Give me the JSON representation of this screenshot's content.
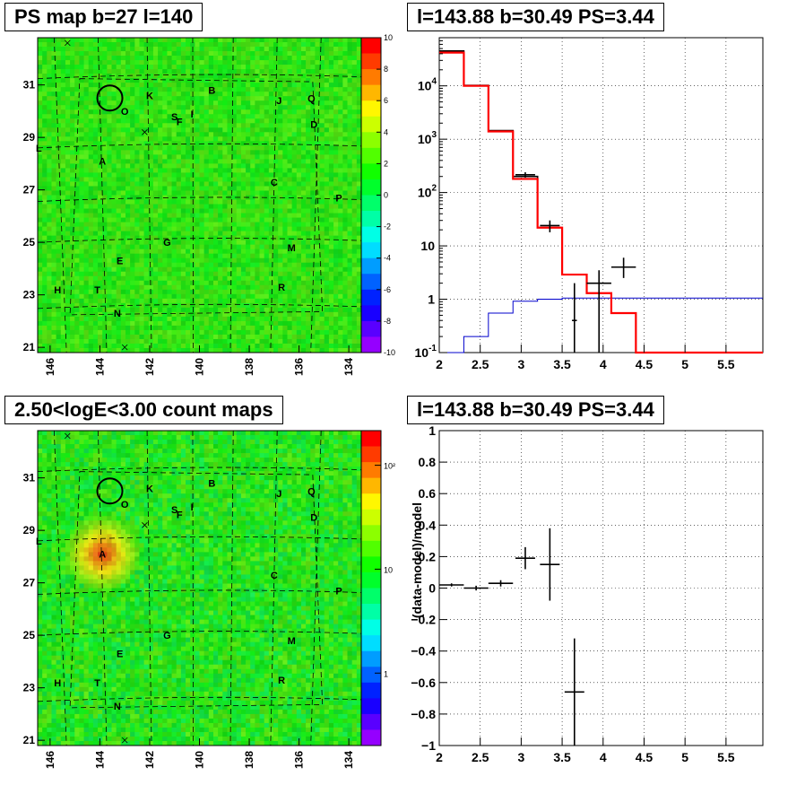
{
  "panels": {
    "ps_map": {
      "title": "PS map b=27 l=140",
      "x_ticks": [
        "146",
        "144",
        "142",
        "140",
        "138",
        "136",
        "134"
      ],
      "y_ticks": [
        "21",
        "23",
        "25",
        "27",
        "29",
        "31"
      ],
      "colorbar_ticks": [
        "10",
        "8",
        "6",
        "4",
        "2",
        "0",
        "-2",
        "-4",
        "-6",
        "-8",
        "-10"
      ],
      "sources": [
        "K",
        "B",
        "O",
        "S",
        "I",
        "F",
        "J",
        "Q",
        "D",
        "A",
        "C",
        "P",
        "G",
        "M",
        "E",
        "H",
        "T",
        "R",
        "N",
        "L"
      ]
    },
    "count_map": {
      "title": "2.50<logE<3.00 count maps",
      "x_ticks": [
        "146",
        "144",
        "142",
        "140",
        "138",
        "136",
        "134"
      ],
      "y_ticks": [
        "21",
        "23",
        "25",
        "27",
        "29",
        "31"
      ],
      "colorbar_ticks": [
        "10²",
        "10",
        "1"
      ],
      "sources": [
        "K",
        "B",
        "O",
        "S",
        "I",
        "F",
        "J",
        "Q",
        "D",
        "A",
        "C",
        "P",
        "G",
        "M",
        "E",
        "H",
        "T",
        "R",
        "N",
        "L"
      ]
    },
    "spectrum": {
      "title": "l=143.88 b=30.49 PS=3.44"
    },
    "residual": {
      "title": "l=143.88 b=30.49 PS=3.44"
    }
  },
  "colors": {
    "data": "#000000",
    "model_total": "#ff0000",
    "model_bkg": "#0000cc"
  },
  "chart_data": [
    {
      "type": "heatmap",
      "title": "PS map b=27 l=140",
      "x_axis": {
        "reversed": true,
        "range": [
          146.5,
          133.5
        ],
        "ticks": [
          146,
          144,
          142,
          140,
          138,
          136,
          134
        ]
      },
      "y_axis": {
        "range": [
          20.8,
          32.8
        ],
        "ticks": [
          21,
          23,
          25,
          27,
          29,
          31
        ]
      },
      "colorbar": {
        "range": [
          -10,
          10
        ]
      },
      "circle": {
        "l": 143.6,
        "b": 30.5
      }
    },
    {
      "type": "line",
      "title": "l=143.88 b=30.49 PS=3.44",
      "x_axis": {
        "range": [
          2,
          5.95
        ],
        "ticks": [
          2,
          2.5,
          3,
          3.5,
          4,
          4.5,
          5,
          5.5
        ]
      },
      "y_axis": {
        "scale": "log",
        "range": [
          0.1,
          80000
        ]
      },
      "grid": true,
      "series": [
        {
          "color": "#ff0000",
          "edges": [
            2,
            2.3,
            2.6,
            2.9,
            3.2,
            3.5,
            3.8,
            4.1,
            4.4,
            4.7,
            5.0,
            5.3,
            5.95
          ],
          "values": [
            42000,
            10000,
            1400,
            180,
            22,
            2.9,
            1.3,
            0.55,
            0.1,
            0.1,
            0.1,
            0.1
          ]
        },
        {
          "color": "#000000",
          "edges": [
            2,
            2.3,
            2.6,
            2.9,
            3.2,
            3.5,
            3.8,
            4.1,
            4.4,
            4.7,
            5.0,
            5.3,
            5.95
          ],
          "values": [
            45000,
            10200,
            1450,
            200,
            22,
            null,
            null,
            null,
            null,
            null,
            null,
            null
          ]
        },
        {
          "color": "#0000cc",
          "edges": [
            2,
            2.3,
            2.6,
            2.9,
            3.2,
            3.5,
            3.8,
            4.1,
            4.4,
            4.7,
            5.0,
            5.3,
            5.95
          ],
          "values": [
            0.1,
            0.2,
            0.55,
            0.92,
            1.0,
            1.05,
            1.05,
            1.05,
            1.05,
            1.05,
            1.05,
            1.05
          ]
        }
      ],
      "points": [
        {
          "x": 3.05,
          "y": 215,
          "xerr": 0.12,
          "ylo": 190,
          "yhi": 240
        },
        {
          "x": 3.35,
          "y": 24,
          "xerr": 0.12,
          "ylo": 18,
          "yhi": 30
        },
        {
          "x": 3.65,
          "y": 0.4,
          "xerr": 0.03,
          "ylo": 0.1,
          "yhi": 2.0
        },
        {
          "x": 3.95,
          "y": 2,
          "xerr": 0.15,
          "ylo": 0.1,
          "yhi": 3.5
        },
        {
          "x": 4.25,
          "y": 4,
          "xerr": 0.15,
          "ylo": 2.5,
          "yhi": 6
        }
      ]
    },
    {
      "type": "heatmap",
      "title": "2.50<logE<3.00 count maps",
      "x_axis": {
        "reversed": true,
        "range": [
          146.5,
          133.5
        ],
        "ticks": [
          146,
          144,
          142,
          140,
          138,
          136,
          134
        ]
      },
      "y_axis": {
        "range": [
          20.8,
          32.8
        ],
        "ticks": [
          21,
          23,
          25,
          27,
          29,
          31
        ]
      },
      "colorbar": {
        "scale": "log",
        "range": [
          0.5,
          200
        ]
      },
      "hotspot": {
        "l": 143.9,
        "b": 28.1
      },
      "circle": {
        "l": 143.6,
        "b": 30.5
      }
    },
    {
      "type": "scatter",
      "title": "l=143.88 b=30.49 PS=3.44",
      "ylabel": "(data-model)/model",
      "x_axis": {
        "range": [
          2,
          5.95
        ],
        "ticks": [
          2,
          2.5,
          3,
          3.5,
          4,
          4.5,
          5,
          5.5
        ]
      },
      "y_axis": {
        "range": [
          -1,
          1
        ],
        "ticks": [
          -1,
          -0.8,
          -0.6,
          -0.4,
          -0.2,
          0,
          0.2,
          0.4,
          0.6,
          0.8,
          1
        ]
      },
      "grid": true,
      "points": [
        {
          "x": 2.15,
          "y": 0.02,
          "xerr": 0.15,
          "err": 0.01
        },
        {
          "x": 2.45,
          "y": 0.0,
          "xerr": 0.15,
          "err": 0.015
        },
        {
          "x": 2.75,
          "y": 0.03,
          "xerr": 0.15,
          "err": 0.02
        },
        {
          "x": 3.05,
          "y": 0.19,
          "xerr": 0.12,
          "err": 0.07
        },
        {
          "x": 3.35,
          "y": 0.15,
          "xerr": 0.12,
          "err": 0.23
        },
        {
          "x": 3.65,
          "y": -0.66,
          "xerr": 0.12,
          "err": 0.34
        }
      ]
    }
  ]
}
